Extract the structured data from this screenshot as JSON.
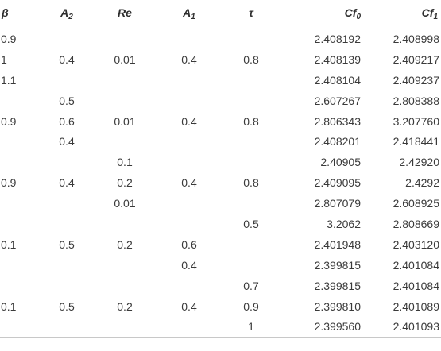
{
  "table": {
    "headers": [
      {
        "main": "β",
        "sub": ""
      },
      {
        "main": "A",
        "sub": "2"
      },
      {
        "main": "Re",
        "sub": ""
      },
      {
        "main": "A",
        "sub": "1"
      },
      {
        "main": "τ",
        "sub": ""
      },
      {
        "main": "Cf",
        "sub": "0"
      },
      {
        "main": "Cf",
        "sub": "1"
      }
    ],
    "rows": [
      [
        "0.9",
        "",
        "",
        "",
        "",
        "2.408192",
        "2.408998"
      ],
      [
        "1",
        "0.4",
        "0.01",
        "0.4",
        "0.8",
        "2.408139",
        "2.409217"
      ],
      [
        "1.1",
        "",
        "",
        "",
        "",
        "2.408104",
        "2.409237"
      ],
      [
        "",
        "0.5",
        "",
        "",
        "",
        "2.607267",
        "2.808388"
      ],
      [
        "0.9",
        "0.6",
        "0.01",
        "0.4",
        "0.8",
        "2.806343",
        "3.207760"
      ],
      [
        "",
        "0.4",
        "",
        "",
        "",
        "2.408201",
        "2.418441"
      ],
      [
        "",
        "",
        "0.1",
        "",
        "",
        "2.40905",
        "2.42920"
      ],
      [
        "0.9",
        "0.4",
        "0.2",
        "0.4",
        "0.8",
        "2.409095",
        "2.4292"
      ],
      [
        "",
        "",
        "0.01",
        "",
        "",
        "2.807079",
        "2.608925"
      ],
      [
        "",
        "",
        "",
        "",
        "0.5",
        "3.2062",
        "2.808669"
      ],
      [
        "0.1",
        "0.5",
        "0.2",
        "0.6",
        "",
        "2.401948",
        "2.403120"
      ],
      [
        "",
        "",
        "",
        "0.4",
        "",
        "2.399815",
        "2.401084"
      ],
      [
        "",
        "",
        "",
        "",
        "0.7",
        "2.399815",
        "2.401084"
      ],
      [
        "0.1",
        "0.5",
        "0.2",
        "0.4",
        "0.9",
        "2.399810",
        "2.401089"
      ],
      [
        "",
        "",
        "",
        "",
        "1",
        "2.399560",
        "2.401093"
      ]
    ]
  }
}
